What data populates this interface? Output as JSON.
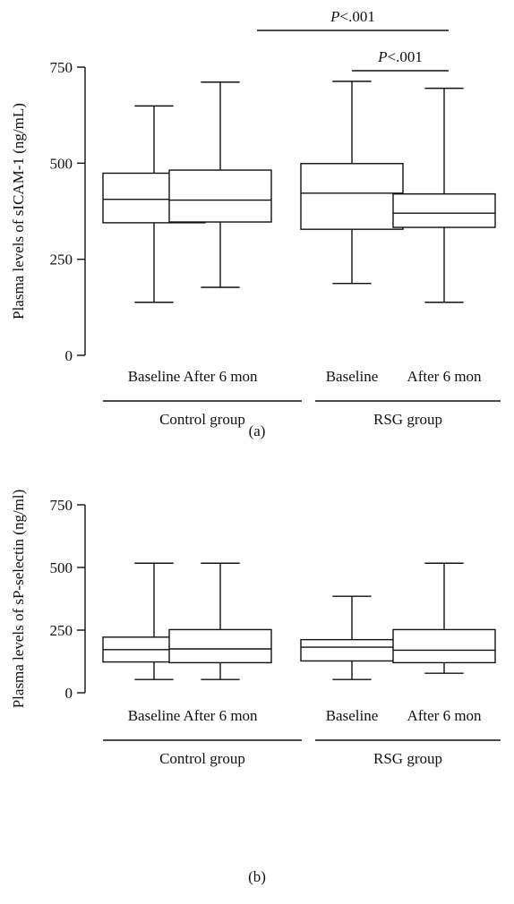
{
  "chart_data": [
    {
      "id": "a",
      "type": "boxplot",
      "panel_label": "(a)",
      "ylabel": "Plasma levels of sICAM-1 (ng/mL)",
      "ylim": [
        0,
        750
      ],
      "yticks": [
        0,
        250,
        500,
        750
      ],
      "categories": [
        "Baseline",
        "After 6 mon",
        "Baseline",
        "After 6 mon"
      ],
      "groups": [
        {
          "label": "Control group",
          "categories": [
            0,
            1
          ]
        },
        {
          "label": "RSG group",
          "categories": [
            2,
            3
          ]
        }
      ],
      "boxes": [
        {
          "min": 138,
          "q1": 345,
          "median": 406,
          "q3": 474,
          "max": 649
        },
        {
          "min": 177,
          "q1": 347,
          "median": 404,
          "q3": 482,
          "max": 711
        },
        {
          "min": 187,
          "q1": 328,
          "median": 422,
          "q3": 499,
          "max": 713
        },
        {
          "min": 138,
          "q1": 333,
          "median": 370,
          "q3": 420,
          "max": 695
        }
      ],
      "comparisons": [
        {
          "from": 1,
          "to": 3,
          "label_italic": "P",
          "label_rest": "<.001"
        },
        {
          "from": 2,
          "to": 3,
          "label_italic": "P",
          "label_rest": "<.001"
        }
      ]
    },
    {
      "id": "b",
      "type": "boxplot",
      "panel_label": "(b)",
      "ylabel": "Plasma levels of sP-selectin (ng/ml)",
      "ylim": [
        0,
        750
      ],
      "yticks": [
        0,
        250,
        500,
        750
      ],
      "categories": [
        "Baseline",
        "After 6 mon",
        "Baseline",
        "After 6 mon"
      ],
      "groups": [
        {
          "label": "Control group",
          "categories": [
            0,
            1
          ]
        },
        {
          "label": "RSG group",
          "categories": [
            2,
            3
          ]
        }
      ],
      "boxes": [
        {
          "min": 53,
          "q1": 123,
          "median": 172,
          "q3": 222,
          "max": 517
        },
        {
          "min": 53,
          "q1": 120,
          "median": 175,
          "q3": 252,
          "max": 517
        },
        {
          "min": 53,
          "q1": 127,
          "median": 182,
          "q3": 212,
          "max": 385
        },
        {
          "min": 78,
          "q1": 120,
          "median": 170,
          "q3": 252,
          "max": 517
        }
      ],
      "comparisons": []
    }
  ]
}
